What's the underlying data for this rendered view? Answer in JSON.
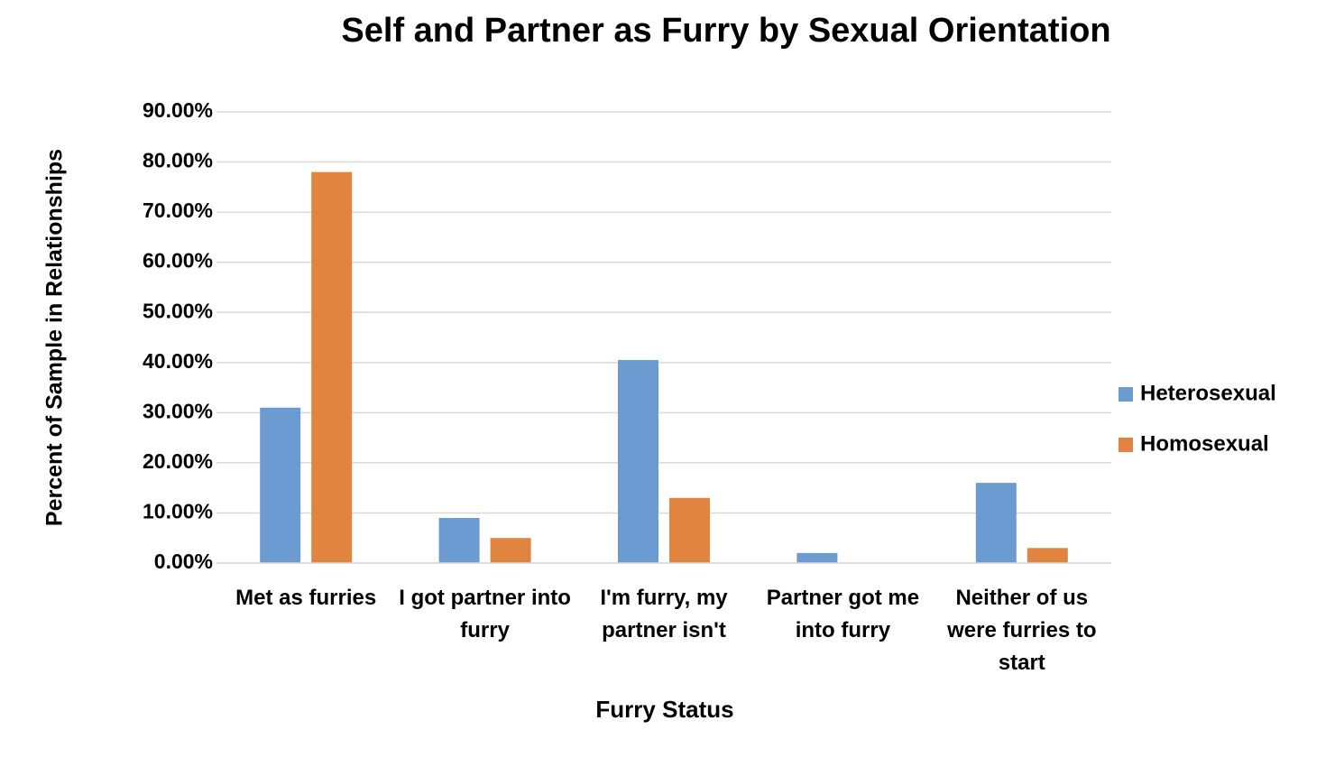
{
  "chart_data": {
    "type": "bar",
    "title": "Self and Partner as Furry by Sexual Orientation",
    "x_label": "Furry Status",
    "y_label": "Percent of Sample in Relationships",
    "categories": [
      "Met as furries",
      "I got partner into furry",
      "I'm furry, my partner isn't",
      "Partner got me into furry",
      "Neither of us were furries to start"
    ],
    "series": [
      {
        "name": "Heterosexual",
        "color": "#6c9bd2",
        "values": [
          31,
          9,
          40.5,
          2,
          16
        ]
      },
      {
        "name": "Homosexual",
        "color": "#e0843f",
        "values": [
          78,
          5,
          13,
          0,
          3
        ]
      }
    ],
    "ylim": [
      0,
      90
    ],
    "yticks": [
      {
        "value": 0,
        "label": "0.00%"
      },
      {
        "value": 10,
        "label": "10.00%"
      },
      {
        "value": 20,
        "label": "20.00%"
      },
      {
        "value": 30,
        "label": "30.00%"
      },
      {
        "value": 40,
        "label": "40.00%"
      },
      {
        "value": 50,
        "label": "50.00%"
      },
      {
        "value": 60,
        "label": "60.00%"
      },
      {
        "value": 70,
        "label": "70.00%"
      },
      {
        "value": 80,
        "label": "80.00%"
      },
      {
        "value": 90,
        "label": "90.00%"
      }
    ],
    "grid": true,
    "legend": "right"
  }
}
